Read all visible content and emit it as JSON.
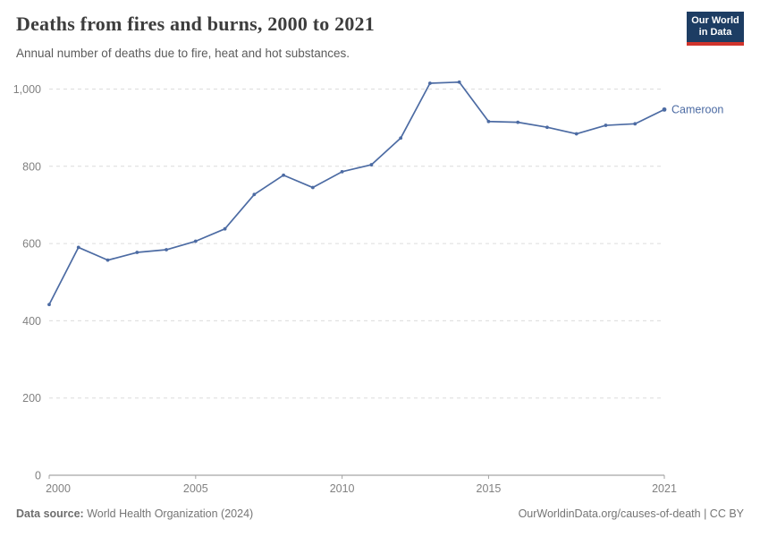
{
  "header": {
    "title": "Deaths from fires and burns, 2000 to 2021",
    "subtitle": "Annual number of deaths due to fire, heat and hot substances.",
    "logo": {
      "line1": "Our World",
      "line2": "in Data",
      "bg_color": "#1d3d63",
      "bar_color": "#d0342c"
    }
  },
  "chart_data": {
    "type": "line",
    "title": "Deaths from fires and burns, 2000 to 2021",
    "xlabel": "",
    "ylabel": "",
    "x_range": [
      2000,
      2021
    ],
    "ylim": [
      0,
      1050
    ],
    "grid": "horizontal-dashed",
    "legend": "inline-end-label",
    "yticks": [
      {
        "value": 0,
        "label": "0"
      },
      {
        "value": 200,
        "label": "200"
      },
      {
        "value": 400,
        "label": "400"
      },
      {
        "value": 600,
        "label": "600"
      },
      {
        "value": 800,
        "label": "800"
      },
      {
        "value": 1000,
        "label": "1,000"
      }
    ],
    "xticks": [
      {
        "value": 2000,
        "label": "2000"
      },
      {
        "value": 2005,
        "label": "2005"
      },
      {
        "value": 2010,
        "label": "2010"
      },
      {
        "value": 2015,
        "label": "2015"
      },
      {
        "value": 2021,
        "label": "2021"
      }
    ],
    "series": [
      {
        "name": "Cameroon",
        "color": "#4c6ba3",
        "x": [
          2000,
          2001,
          2002,
          2003,
          2004,
          2005,
          2006,
          2007,
          2008,
          2009,
          2010,
          2011,
          2012,
          2013,
          2014,
          2015,
          2016,
          2017,
          2018,
          2019,
          2020,
          2021
        ],
        "values": [
          442,
          590,
          557,
          577,
          584,
          606,
          638,
          727,
          777,
          745,
          786,
          804,
          873,
          1015,
          1018,
          916,
          914,
          901,
          884,
          906,
          910,
          947
        ]
      }
    ]
  },
  "footer": {
    "source_label": "Data source:",
    "source_value": " World Health Organization (2024)",
    "license": "OurWorldinData.org/causes-of-death | CC BY"
  },
  "style": {
    "grid_color": "#dcdcdc",
    "axis_color": "#8f8f8f",
    "tick_color": "#a3a3a3"
  }
}
